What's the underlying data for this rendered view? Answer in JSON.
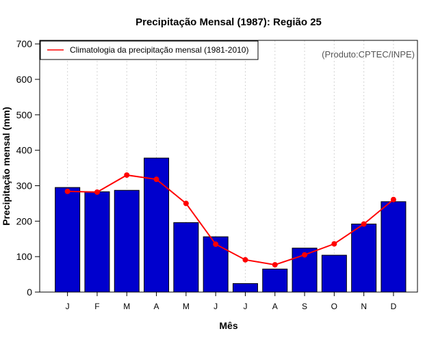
{
  "chart_data": {
    "type": "bar",
    "title": "Precipitação Mensal (1987): Região 25",
    "xlabel": "Mês",
    "ylabel": "Precipitação mensal (mm)",
    "ylim": [
      0,
      710
    ],
    "yticks": [
      0,
      100,
      200,
      300,
      400,
      500,
      600,
      700
    ],
    "grid": "vertical dotted",
    "legend_position": "top-left",
    "credit": "(Produto:CPTEC/INPE)",
    "categories": [
      "J",
      "F",
      "M",
      "A",
      "M",
      "J",
      "J",
      "A",
      "S",
      "O",
      "N",
      "D"
    ],
    "series": [
      {
        "name": "Precipitação mensal (1987)",
        "kind": "bar",
        "color": "#0000cd",
        "values": [
          295,
          283,
          287,
          378,
          196,
          156,
          24,
          65,
          124,
          104,
          192,
          255
        ]
      },
      {
        "name": "Climatologia da precipitação mensal (1981-2010)",
        "kind": "line",
        "color": "#ff0000",
        "values": [
          284,
          282,
          330,
          318,
          250,
          135,
          91,
          77,
          105,
          136,
          192,
          261
        ]
      }
    ]
  }
}
